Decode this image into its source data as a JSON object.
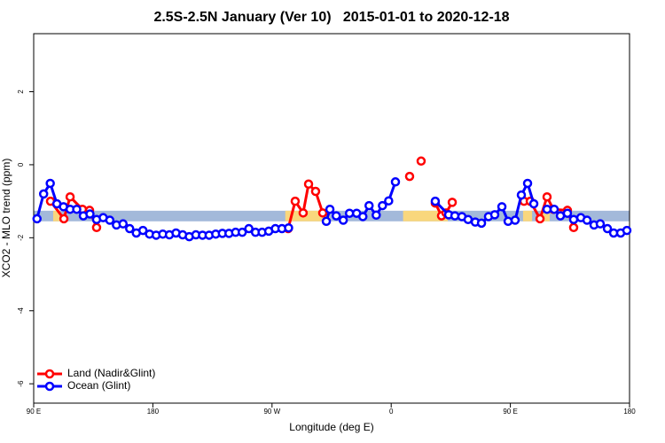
{
  "chart_data": {
    "type": "line",
    "title": "2.5S-2.5N January (Ver 10)   2015-01-01 to 2020-12-18",
    "x_label": "Longitude (deg E)",
    "y_label": "XCO2 - MLO trend (ppm)",
    "xlim": [
      90,
      540
    ],
    "xticks": [
      {
        "value": 90,
        "label": "90 E"
      },
      180,
      {
        "value": 270,
        "label": "90 W"
      },
      0,
      {
        "value": 450,
        "label": "90 E"
      },
      {
        "value": 540,
        "label": "180"
      }
    ],
    "ylim": [
      -6.53,
      3.59
    ],
    "yticks": [
      -6,
      -4,
      -2,
      0,
      2
    ],
    "legend": "bottom-left",
    "band_range": [
      -1.55,
      -1.26
    ],
    "band_color": "#a3b9da",
    "land_color": "#f9d77d",
    "land_spans": [
      [
        104.7,
        110
      ],
      [
        280,
        313.6
      ],
      [
        369,
        402.7
      ],
      [
        459.6,
        466.4
      ],
      [
        474,
        479.7
      ]
    ],
    "series": [
      {
        "name": "Land (Nadir&Glint)",
        "color": "#ff0000",
        "x": [
          102.7,
          112.8,
          117.5,
          126.8,
          132.2,
          137.5,
          null,
          282.2,
          287.5,
          293.5,
          297.6,
          302.9,
          308.3,
          null,
          373.9,
          null,
          382.6,
          null,
          393.3,
          398,
          401.4,
          406.1,
          null,
          460.3,
          465,
          472.4,
          477.7,
          482.4,
          493.1,
          497.8
        ],
        "values": [
          -1.0,
          -1.48,
          -0.88,
          -1.22,
          -1.25,
          -1.72,
          null,
          -1.75,
          -1.0,
          -1.32,
          -0.53,
          -0.73,
          -1.32,
          null,
          -0.32,
          null,
          0.1,
          null,
          -1.05,
          -1.4,
          -1.32,
          -1.03,
          null,
          -1.0,
          -1.0,
          -1.48,
          -0.88,
          -1.22,
          -1.25,
          -1.72
        ]
      },
      {
        "name": "Ocean (Glint)",
        "color": "#0000ff",
        "x": [
          92.5,
          97.5,
          102.5,
          107.5,
          112.5,
          117.5,
          122.5,
          127.5,
          132.5,
          137.5,
          142.5,
          147.5,
          152.5,
          157.5,
          162.5,
          167.5,
          172.5,
          177.5,
          182.5,
          187.5,
          192.5,
          197.5,
          202.5,
          207.5,
          212.5,
          217.5,
          222.5,
          227.5,
          232.5,
          237.5,
          242.5,
          247.5,
          252.5,
          257.5,
          262.5,
          267.5,
          272.5,
          277.5,
          282.5,
          null,
          311,
          313.7,
          318.5,
          323.8,
          328.5,
          333.9,
          338.6,
          343.3,
          348.7,
          353.4,
          358.1,
          363.2,
          null,
          393.3,
          403.4,
          408.1,
          413.4,
          418.1,
          423.5,
          428.2,
          433.5,
          438.2,
          443.6,
          448.3,
          453.6,
          458.3,
          463,
          467.7,
          null,
          477.7,
          483.1,
          487.8,
          493.1,
          497.8,
          503.2,
          507.9,
          513.2,
          517.9,
          523.3,
          528,
          533.3,
          538
        ],
        "values": [
          -1.48,
          -0.8,
          -0.51,
          -1.07,
          -1.15,
          -1.22,
          -1.22,
          -1.4,
          -1.35,
          -1.5,
          -1.45,
          -1.52,
          -1.65,
          -1.62,
          -1.75,
          -1.87,
          -1.8,
          -1.9,
          -1.93,
          -1.9,
          -1.92,
          -1.87,
          -1.92,
          -1.97,
          -1.92,
          -1.93,
          -1.93,
          -1.9,
          -1.88,
          -1.88,
          -1.85,
          -1.85,
          -1.75,
          -1.85,
          -1.85,
          -1.82,
          -1.75,
          -1.75,
          -1.73,
          null,
          -1.55,
          -1.22,
          -1.4,
          -1.52,
          -1.33,
          -1.33,
          -1.42,
          -1.12,
          -1.38,
          -1.12,
          -0.99,
          -0.47,
          null,
          -1.0,
          -1.37,
          -1.4,
          -1.42,
          -1.5,
          -1.57,
          -1.6,
          -1.42,
          -1.37,
          -1.15,
          -1.55,
          -1.52,
          -0.83,
          -0.51,
          -1.07,
          null,
          -1.22,
          -1.22,
          -1.4,
          -1.33,
          -1.5,
          -1.45,
          -1.52,
          -1.65,
          -1.62,
          -1.75,
          -1.87,
          -1.87,
          -1.8
        ]
      }
    ]
  }
}
